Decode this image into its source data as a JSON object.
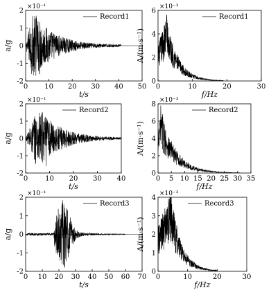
{
  "chart_data": [
    {
      "type": "line",
      "ylabel": "a/g",
      "xlabel": "t/s",
      "yscale_label": "×10⁻¹",
      "xlim": [
        0,
        50
      ],
      "ylim": [
        -2,
        2
      ],
      "xticks": [
        "0",
        "10",
        "20",
        "30",
        "40",
        "50"
      ],
      "yticks": [
        "-2",
        "-1",
        "0",
        "1",
        "2"
      ],
      "series": [
        {
          "name": "Record1",
          "duration": 41,
          "peak_time": 4.5,
          "peak": 1.7,
          "trough": -1.6,
          "kind": "accel"
        }
      ]
    },
    {
      "type": "line",
      "ylabel": "A/(m·s⁻¹)",
      "xlabel": "f/Hz",
      "yscale_label": "×10⁻³",
      "xlim": [
        0,
        30
      ],
      "ylim": [
        0,
        6
      ],
      "xticks": [
        "0",
        "10",
        "20",
        "30"
      ],
      "yticks": [
        "0",
        "2",
        "4",
        "6"
      ],
      "series": [
        {
          "name": "Record1",
          "fmax": 19,
          "peak_freq": 2.5,
          "peak": 5.6,
          "kind": "spectrum"
        }
      ]
    },
    {
      "type": "line",
      "ylabel": "a/g",
      "xlabel": "t/s",
      "yscale_label": "×10⁻¹",
      "xlim": [
        0,
        40
      ],
      "ylim": [
        -2,
        2
      ],
      "xticks": [
        "0",
        "10",
        "20",
        "30",
        "40"
      ],
      "yticks": [
        "-2",
        "-1",
        "0",
        "1",
        "2"
      ],
      "series": [
        {
          "name": "Record2",
          "duration": 40,
          "peak_time": 7.0,
          "peak": 1.5,
          "trough": -1.6,
          "kind": "accel"
        }
      ]
    },
    {
      "type": "line",
      "ylabel": "A/(m·s⁻¹)",
      "xlabel": "f/Hz",
      "yscale_label": "×10⁻³",
      "xlim": [
        0,
        35
      ],
      "ylim": [
        0,
        8
      ],
      "xticks": [
        "0",
        "5",
        "10",
        "15",
        "20",
        "25",
        "30",
        "35"
      ],
      "yticks": [
        "0",
        "2",
        "4",
        "6",
        "8"
      ],
      "series": [
        {
          "name": "Record2",
          "fmax": 31,
          "peak_freq": 1.0,
          "peak": 7.8,
          "kind": "spectrum"
        }
      ]
    },
    {
      "type": "line",
      "ylabel": "a/g",
      "xlabel": "t/s",
      "yscale_label": "×10⁻¹",
      "xlim": [
        0,
        70
      ],
      "ylim": [
        -2,
        2
      ],
      "xticks": [
        "0",
        "10",
        "20",
        "30",
        "40",
        "50",
        "60",
        "70"
      ],
      "yticks": [
        "-2",
        "-1",
        "0",
        "1",
        "2"
      ],
      "series": [
        {
          "name": "Record3",
          "duration": 60,
          "peak_time": 22,
          "peak": 1.7,
          "trough": -1.8,
          "kind": "accel3"
        }
      ]
    },
    {
      "type": "line",
      "ylabel": "A/(m·s⁻¹)",
      "xlabel": "f/Hz",
      "yscale_label": "×10⁻³",
      "xlim": [
        0,
        30
      ],
      "ylim": [
        0,
        4
      ],
      "xticks": [
        "0",
        "10",
        "20",
        "30"
      ],
      "yticks": [
        "0",
        "1",
        "2",
        "3",
        "4"
      ],
      "series": [
        {
          "name": "Record3",
          "fmax": 20,
          "peak_freq": 4.3,
          "peak": 4.4,
          "kind": "spectrum"
        }
      ]
    }
  ]
}
